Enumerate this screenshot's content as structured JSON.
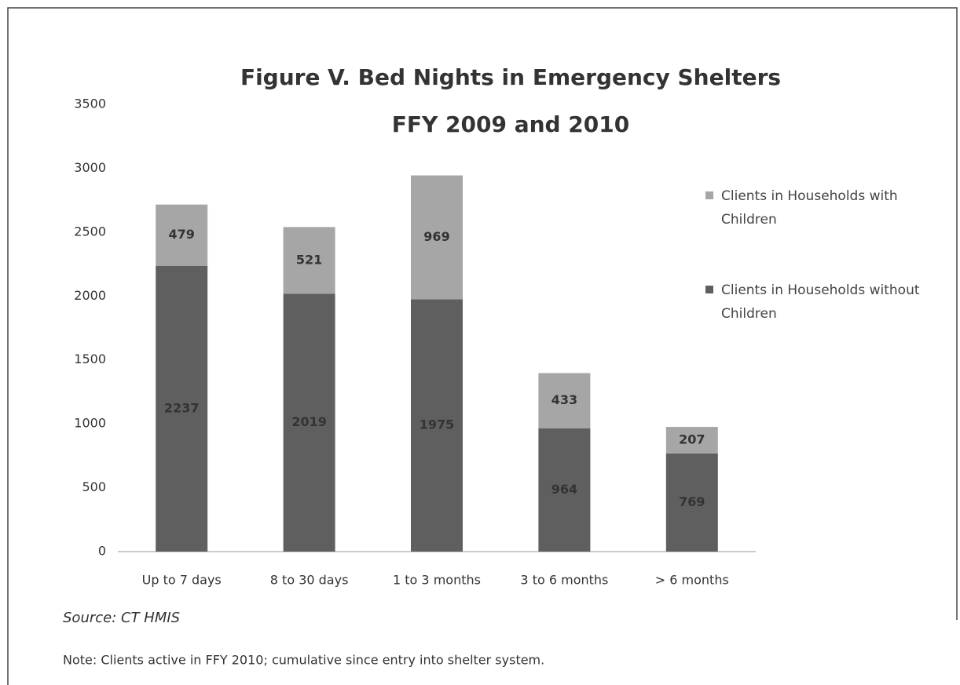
{
  "chart_data": {
    "type": "stacked_bar",
    "title": "Figure V.  Bed Nights in Emergency Shelters",
    "subtitle": "FFY 2009 and 2010",
    "categories": [
      "Up to 7 days",
      "8 to 30 days",
      "1 to 3 months",
      "3 to 6 months",
      "> 6 months"
    ],
    "series": [
      {
        "name": "Clients in Households without Children",
        "color": "#5f5f5f",
        "values": [
          2237,
          2019,
          1975,
          964,
          769
        ]
      },
      {
        "name": "Clients in Households with Children",
        "color": "#a6a6a6",
        "values": [
          479,
          521,
          969,
          433,
          207
        ]
      }
    ],
    "ylim": [
      0,
      3500
    ],
    "yticks": [
      0,
      500,
      1000,
      1500,
      2000,
      2500,
      3000,
      3500
    ],
    "grid": false,
    "legend": "right",
    "source": "Source:  CT HMIS",
    "note": "Note:  Clients active in FFY 2010; cumulative since entry into shelter system."
  }
}
